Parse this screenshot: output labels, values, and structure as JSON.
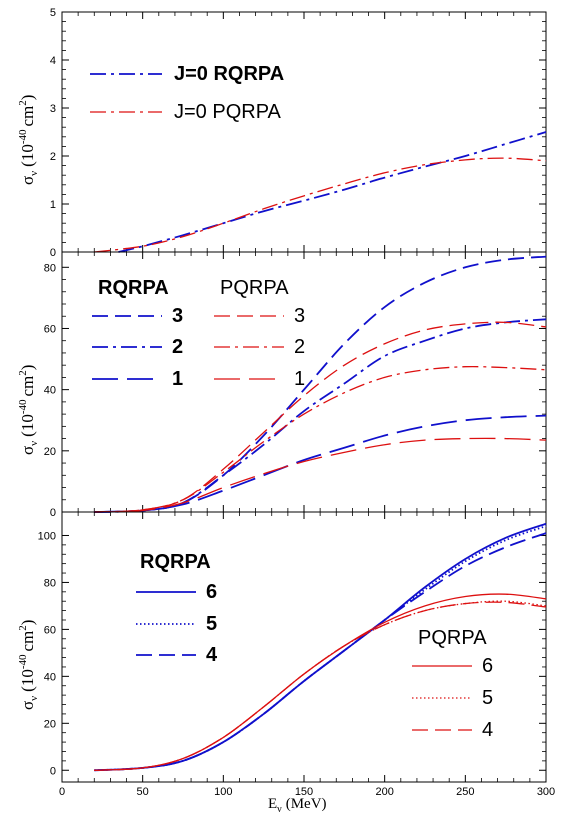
{
  "figure": {
    "xlabel_main": "E",
    "xlabel_sub": "ν",
    "xlabel_unit": "(MeV)",
    "ylabel_main": "σ",
    "ylabel_sub": "ν",
    "ylabel_unit_pre": "(10",
    "ylabel_exp": "-40",
    "ylabel_unit_post": "cm",
    "ylabel_sq": "2",
    "ylabel_close": ")"
  },
  "colors": {
    "rqrpa": "#1010cc",
    "pqrpa": "#dd1010",
    "axis": "#000000"
  },
  "chart_data": [
    {
      "type": "line",
      "panel": "top",
      "xlim": [
        0,
        300
      ],
      "ylim": [
        0,
        5
      ],
      "xticks": [
        0,
        50,
        100,
        150,
        200,
        250,
        300
      ],
      "yticks": [
        0,
        1,
        2,
        3,
        4,
        5
      ],
      "legend": [
        {
          "label": "J=0   RQRPA",
          "bold": true,
          "series": "J0_RQRPA"
        },
        {
          "label": "J=0   PQRPA",
          "bold": false,
          "series": "J0_PQRPA"
        }
      ],
      "series": [
        {
          "name": "J=0   RQRPA",
          "id": "J0_RQRPA",
          "model": "rqrpa",
          "style": "dashdot",
          "x": [
            35,
            50,
            75,
            100,
            125,
            150,
            175,
            200,
            225,
            250,
            275,
            300
          ],
          "y": [
            0.0,
            0.12,
            0.35,
            0.6,
            0.85,
            1.07,
            1.3,
            1.55,
            1.78,
            2.0,
            2.25,
            2.5
          ]
        },
        {
          "name": "J=0   PQRPA",
          "id": "J0_PQRPA",
          "model": "pqrpa",
          "style": "dashdot",
          "x": [
            20,
            50,
            75,
            100,
            125,
            150,
            175,
            200,
            225,
            250,
            265,
            280,
            300
          ],
          "y": [
            0.0,
            0.12,
            0.32,
            0.6,
            0.9,
            1.17,
            1.42,
            1.65,
            1.82,
            1.92,
            1.95,
            1.95,
            1.9
          ]
        }
      ]
    },
    {
      "type": "line",
      "panel": "middle",
      "xlim": [
        0,
        300
      ],
      "ylim": [
        0,
        85
      ],
      "xticks": [
        0,
        50,
        100,
        150,
        200,
        250,
        300
      ],
      "yticks": [
        0,
        20,
        40,
        60,
        80
      ],
      "legend_rqrpa_title": "RQRPA",
      "legend_pqrpa_title": "PQRPA",
      "legend": [
        {
          "label": "3",
          "style": "dash"
        },
        {
          "label": "2",
          "style": "dashdot"
        },
        {
          "label": "1",
          "style": "longdash"
        }
      ],
      "series": [
        {
          "name": "3",
          "model": "rqrpa",
          "style": "dash",
          "x": [
            20,
            50,
            75,
            100,
            125,
            150,
            175,
            200,
            225,
            250,
            275,
            300
          ],
          "y": [
            0,
            0.5,
            3,
            12,
            25,
            40,
            55,
            67,
            75,
            80,
            82.5,
            83.5
          ]
        },
        {
          "name": "2",
          "model": "rqrpa",
          "style": "dashdot",
          "x": [
            20,
            50,
            75,
            100,
            125,
            150,
            175,
            200,
            225,
            250,
            275,
            300
          ],
          "y": [
            0,
            0.5,
            3,
            12,
            22,
            33,
            42,
            51,
            56,
            60,
            62,
            63
          ]
        },
        {
          "name": "1",
          "model": "rqrpa",
          "style": "longdash",
          "x": [
            20,
            50,
            75,
            100,
            125,
            150,
            175,
            200,
            225,
            250,
            275,
            300
          ],
          "y": [
            0,
            0.5,
            2.5,
            7,
            12,
            17,
            21,
            25,
            28,
            30,
            31,
            31.5
          ]
        },
        {
          "name": "3",
          "model": "pqrpa",
          "style": "dash",
          "x": [
            20,
            50,
            75,
            100,
            125,
            150,
            175,
            200,
            225,
            250,
            275,
            300
          ],
          "y": [
            0,
            0.7,
            4,
            14,
            26,
            38,
            48,
            55,
            59.5,
            61.5,
            62,
            60.5
          ]
        },
        {
          "name": "2",
          "model": "pqrpa",
          "style": "dashdot",
          "x": [
            20,
            50,
            75,
            100,
            125,
            150,
            175,
            200,
            225,
            250,
            275,
            300
          ],
          "y": [
            0,
            0.7,
            4,
            13,
            23,
            32,
            39,
            44,
            46.5,
            47.5,
            47.2,
            46.5
          ]
        },
        {
          "name": "1",
          "model": "pqrpa",
          "style": "longdash",
          "x": [
            20,
            50,
            75,
            100,
            125,
            150,
            175,
            200,
            225,
            250,
            275,
            300
          ],
          "y": [
            0,
            0.5,
            3,
            8,
            12.5,
            16.5,
            19.5,
            22,
            23.5,
            24,
            24,
            23.5
          ]
        }
      ]
    },
    {
      "type": "line",
      "panel": "bottom",
      "xlim": [
        0,
        300
      ],
      "ylim": [
        -5,
        110
      ],
      "xticks": [
        0,
        50,
        100,
        150,
        200,
        250,
        300
      ],
      "yticks": [
        0,
        20,
        40,
        60,
        80,
        100
      ],
      "legend_rqrpa_title": "RQRPA",
      "legend_pqrpa_title": "PQRPA",
      "legend": [
        {
          "label": "6",
          "style": "solid"
        },
        {
          "label": "5",
          "style": "dot"
        },
        {
          "label": "4",
          "style": "dash"
        }
      ],
      "series": [
        {
          "name": "6",
          "model": "rqrpa",
          "style": "solid",
          "x": [
            20,
            50,
            75,
            100,
            125,
            150,
            175,
            200,
            225,
            250,
            275,
            300
          ],
          "y": [
            0,
            1,
            4,
            12,
            24,
            38,
            51,
            64,
            78,
            90,
            99,
            105
          ]
        },
        {
          "name": "5",
          "model": "rqrpa",
          "style": "dot",
          "x": [
            20,
            50,
            75,
            100,
            125,
            150,
            175,
            200,
            225,
            250,
            275,
            300
          ],
          "y": [
            0,
            1,
            4,
            12,
            24,
            38,
            51,
            64,
            77,
            89,
            98,
            104
          ]
        },
        {
          "name": "4",
          "model": "rqrpa",
          "style": "dash",
          "x": [
            20,
            50,
            75,
            100,
            125,
            150,
            175,
            200,
            225,
            250,
            275,
            300
          ],
          "y": [
            0,
            1,
            4,
            12,
            24,
            38,
            51,
            64,
            76,
            87,
            95,
            101
          ]
        },
        {
          "name": "6",
          "model": "pqrpa",
          "style": "solid",
          "x": [
            20,
            50,
            75,
            100,
            125,
            150,
            175,
            200,
            225,
            250,
            275,
            300
          ],
          "y": [
            0,
            1,
            5,
            14,
            27,
            41,
            53,
            63,
            70,
            74,
            75,
            73
          ]
        },
        {
          "name": "5",
          "model": "pqrpa",
          "style": "dot",
          "x": [
            20,
            50,
            75,
            100,
            125,
            150,
            175,
            200,
            225,
            250,
            275,
            300
          ],
          "y": [
            0,
            1,
            5,
            14,
            27,
            41,
            53,
            62,
            68,
            71,
            72,
            70
          ]
        },
        {
          "name": "4",
          "model": "pqrpa",
          "style": "dash",
          "x": [
            20,
            50,
            75,
            100,
            125,
            150,
            175,
            200,
            225,
            250,
            275,
            300
          ],
          "y": [
            0,
            1,
            5,
            14,
            27,
            41,
            53,
            62,
            68,
            71,
            71.5,
            69.5
          ]
        }
      ]
    }
  ]
}
